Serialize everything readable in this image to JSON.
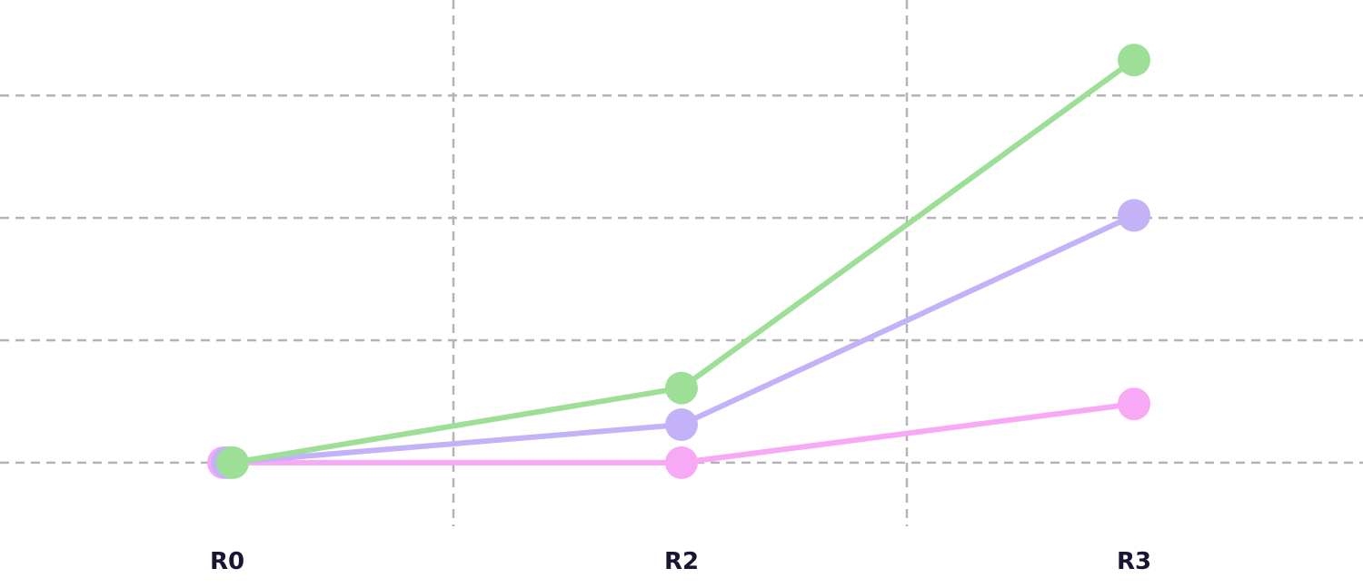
{
  "chart_data": {
    "type": "line",
    "categories": [
      "R0",
      "R2",
      "R3"
    ],
    "series": [
      {
        "color": "#f8a9f5",
        "values": [
          0,
          0,
          0.48
        ]
      },
      {
        "color": "#c4b2f9",
        "values": [
          0,
          0.31,
          2.02
        ]
      },
      {
        "color": "#9ddf96",
        "values": [
          0,
          0.61,
          3.29
        ]
      }
    ],
    "ylim": [
      -0.52,
      3.78
    ],
    "yticks": [
      0,
      1,
      2,
      3
    ],
    "grid": true,
    "legend": "none"
  }
}
